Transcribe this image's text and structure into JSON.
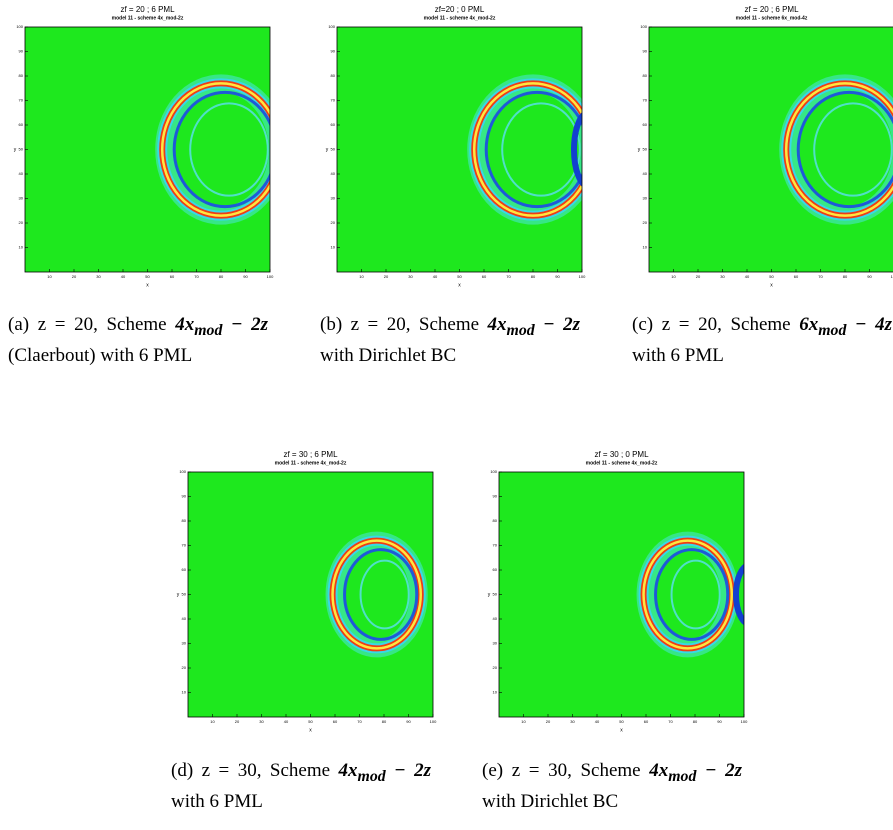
{
  "axes": {
    "xlabel": "x",
    "ylabel": "y",
    "xlim": [
      0,
      100
    ],
    "ylim": [
      0,
      100
    ],
    "xticks": [
      10,
      20,
      30,
      40,
      50,
      60,
      70,
      80,
      90,
      100
    ],
    "yticks": [
      10,
      20,
      30,
      40,
      50,
      60,
      70,
      80,
      90,
      100
    ]
  },
  "panels": [
    {
      "title": "zf = 20 ; 6 PML",
      "subtitle": "model 11 - scheme 4x_mod-2z",
      "caption": {
        "lead": "(a) z = 20, Scheme",
        "formula": "4x",
        "formula_sub": "mod",
        "formula_end": "− 2z",
        "tail": "(Claerbout) with 6 PML"
      }
    },
    {
      "title": "zf=20 ; 0 PML",
      "subtitle": "model 11 - scheme 4x_mod-2z",
      "caption": {
        "lead": "(b) z = 20, Scheme",
        "formula": "4x",
        "formula_sub": "mod",
        "formula_end": "− 2z",
        "tail": "with Dirichlet BC"
      }
    },
    {
      "title": "zf = 20 ; 6 PML",
      "subtitle": "model 11 - scheme 6x_mod-4z",
      "caption": {
        "lead": "(c) z = 20, Scheme",
        "formula": "6x",
        "formula_sub": "mod",
        "formula_end": "− 4z",
        "tail": "with 6 PML"
      }
    },
    {
      "title": "zf = 30 ; 6 PML",
      "subtitle": "model 11 - scheme 4x_mod-2z",
      "caption": {
        "lead": "(d) z = 30, Scheme",
        "formula": "4x",
        "formula_sub": "mod",
        "formula_end": "− 2z",
        "tail": "with 6 PML"
      }
    },
    {
      "title": "zf = 30 ; 0 PML",
      "subtitle": "model 11 - scheme 4x_mod-2z",
      "caption": {
        "lead": "(e) z = 30, Scheme",
        "formula": "4x",
        "formula_sub": "mod",
        "formula_end": "− 2z",
        "tail": "with Dirichlet BC"
      }
    }
  ]
}
